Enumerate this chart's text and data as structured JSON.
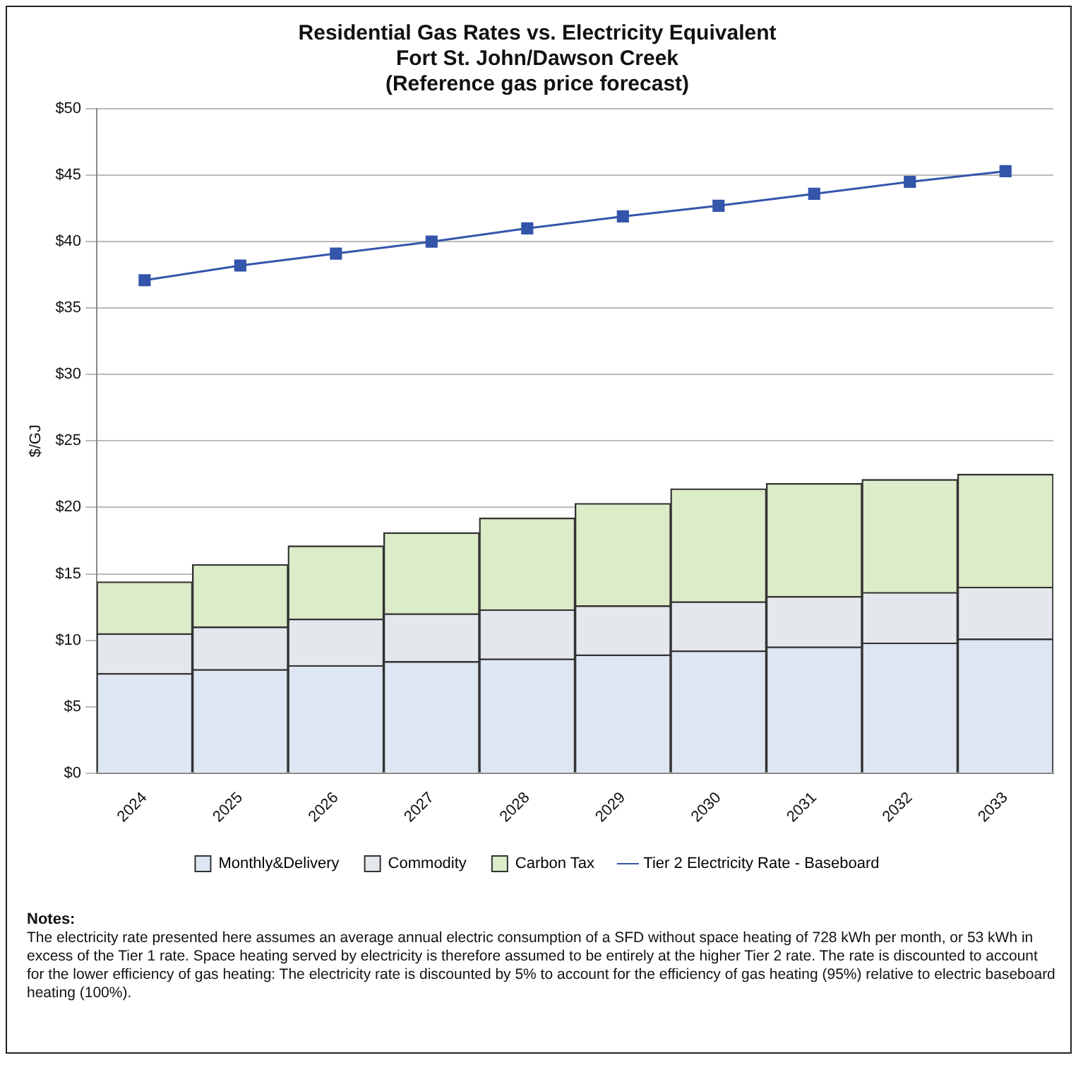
{
  "chart_data": {
    "type": "bar",
    "title": "Residential Gas Rates vs. Electricity Equivalent\nFort St. John/Dawson Creek\n(Reference gas price forecast)",
    "ylabel": "$/GJ",
    "categories": [
      "2024",
      "2025",
      "2026",
      "2027",
      "2028",
      "2029",
      "2030",
      "2031",
      "2032",
      "2033"
    ],
    "stacked": true,
    "series": [
      {
        "name": "Monthly&Delivery",
        "color": "#dde6f2",
        "values": [
          7.5,
          7.8,
          8.1,
          8.4,
          8.6,
          8.9,
          9.2,
          9.5,
          9.8,
          10.1
        ]
      },
      {
        "name": "Commodity",
        "color": "#e4e7ec",
        "values": [
          3.0,
          3.2,
          3.5,
          3.6,
          3.7,
          3.7,
          3.7,
          3.8,
          3.8,
          3.9
        ]
      },
      {
        "name": "Carbon Tax",
        "color": "#dcebc8",
        "values": [
          3.9,
          4.7,
          5.5,
          6.1,
          6.9,
          7.7,
          8.5,
          8.5,
          8.5,
          8.5
        ]
      },
      {
        "name": "Tier 2 Electricity Rate - Baseboard",
        "type": "line",
        "color": "#3355aa",
        "marker": "square",
        "values": [
          37.1,
          38.2,
          39.1,
          40.0,
          41.0,
          41.9,
          42.7,
          43.6,
          44.5,
          45.3
        ]
      }
    ],
    "ylim": [
      0,
      50
    ],
    "yticks": [
      {
        "value": 0,
        "label": "$0"
      },
      {
        "value": 5,
        "label": "$5"
      },
      {
        "value": 10,
        "label": "$10"
      },
      {
        "value": 15,
        "label": "$15"
      },
      {
        "value": 20,
        "label": "$20"
      },
      {
        "value": 25,
        "label": "$25"
      },
      {
        "value": 30,
        "label": "$30"
      },
      {
        "value": 35,
        "label": "$35"
      },
      {
        "value": 40,
        "label": "$40"
      },
      {
        "value": 45,
        "label": "$45"
      },
      {
        "value": 50,
        "label": "$50"
      }
    ],
    "grid": "y",
    "legend": "bottom",
    "annotations": [
      "Notes:",
      "The electricity rate presented here assumes an average annual electric consumption of a SFD without space heating of 728 kWh per month, or 53 kWh in excess of the Tier 1 rate. Space heating served by electricity is therefore assumed to be entirely at the higher Tier 2 rate. The rate is discounted to account for the lower efficiency of gas heating: The electricity rate is discounted by 5% to account for the efficiency of gas heating (95%) relative to electric baseboard heating (100%)."
    ]
  }
}
